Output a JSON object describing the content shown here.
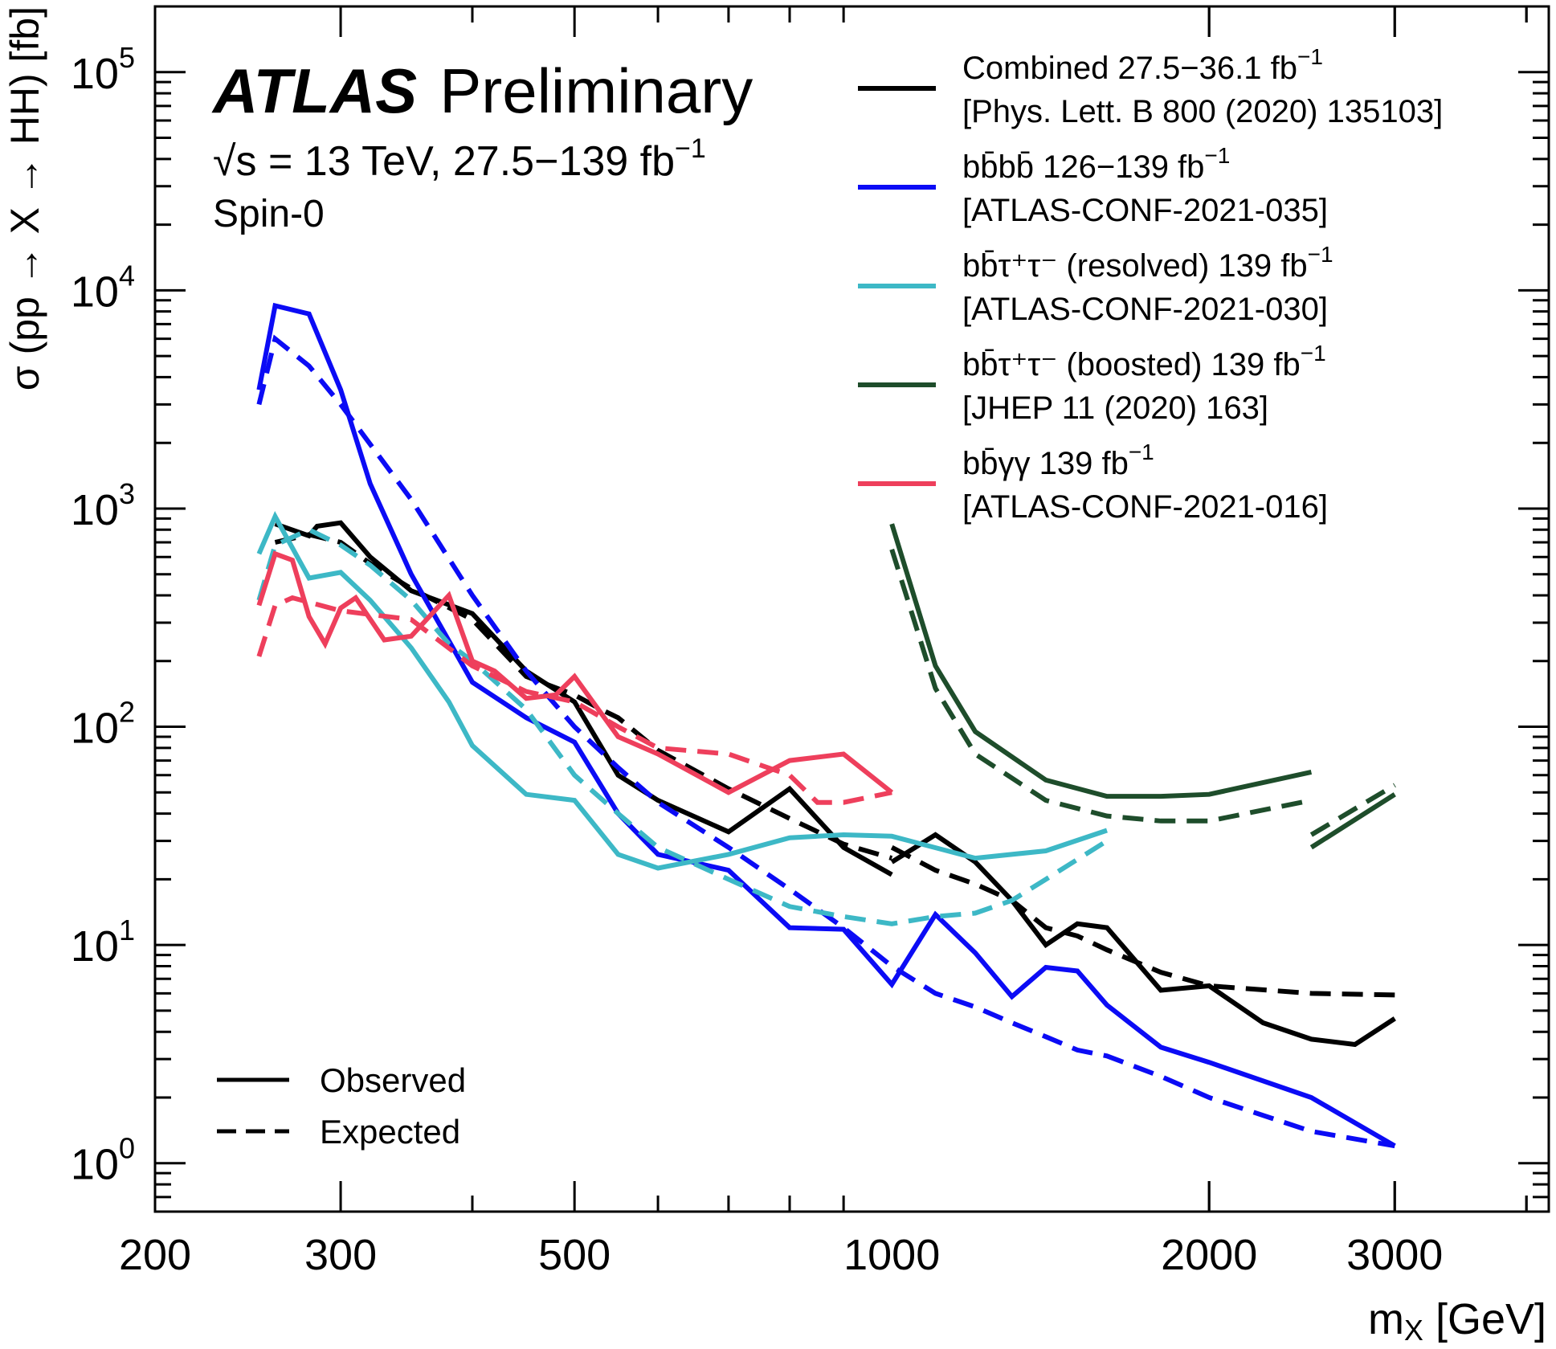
{
  "chart_data": {
    "type": "line",
    "xscale": "log",
    "yscale": "log",
    "xlim": [
      200,
      4200
    ],
    "ylim": [
      0.6,
      200000
    ],
    "xlabel": "m",
    "xlabel_sub": "X",
    "xlabel_unit": " [GeV]",
    "ylabel": "σ (pp → X → HH) [fb]",
    "x_ticks": [
      {
        "value": 200,
        "label": "200"
      },
      {
        "value": 300,
        "label": "300"
      },
      {
        "value": 500,
        "label": "500"
      },
      {
        "value": 1000,
        "label": "1000"
      },
      {
        "value": 2000,
        "label": "2000"
      },
      {
        "value": 3000,
        "label": "3000"
      }
    ],
    "y_ticks": [
      {
        "value": 1,
        "base": "10",
        "exp": "0"
      },
      {
        "value": 10,
        "base": "10",
        "exp": "1"
      },
      {
        "value": 100,
        "base": "10",
        "exp": "2"
      },
      {
        "value": 1000,
        "base": "10",
        "exp": "3"
      },
      {
        "value": 10000,
        "base": "10",
        "exp": "4"
      },
      {
        "value": 100000,
        "base": "10",
        "exp": "5"
      }
    ],
    "annotations": {
      "experiment": "ATLAS",
      "status": "Preliminary",
      "energy": "√s = 13 TeV, 27.5−139 fb",
      "energy_sup": "−1",
      "spin": "Spin-0"
    },
    "style_legend": {
      "observed": "Observed",
      "expected": "Expected"
    },
    "legend": [
      {
        "key": "combined",
        "color": "#000000",
        "line1": "Combined 27.5−36.1 fb",
        "line1_sup": "−1",
        "line2": "[Phys. Lett. B 800 (2020) 135103]"
      },
      {
        "key": "bbbb",
        "color": "#0b0bf5",
        "line1": "bb̄bb̄ 126−139 fb",
        "line1_sup": "−1",
        "line2": "[ATLAS-CONF-2021-035]"
      },
      {
        "key": "bbtautau_resolved",
        "color": "#3db8c6",
        "line1": "bb̄τ⁺τ⁻ (resolved) 139 fb",
        "line1_sup": "−1",
        "line2": "[ATLAS-CONF-2021-030]"
      },
      {
        "key": "bbtautau_boosted",
        "color": "#1e4d2b",
        "line1": "bb̄τ⁺τ⁻ (boosted) 139 fb",
        "line1_sup": "−1",
        "line2": "[JHEP 11 (2020) 163]"
      },
      {
        "key": "bbyy",
        "color": "#ee3f5c",
        "line1": "bb̄γγ 139 fb",
        "line1_sup": "−1",
        "line2": "[ATLAS-CONF-2021-016]"
      }
    ],
    "series": [
      {
        "name": "Combined observed",
        "key": "combined",
        "style": "solid",
        "color": "#000000",
        "points": [
          [
            260,
            850
          ],
          [
            280,
            750
          ],
          [
            285,
            830
          ],
          [
            300,
            860
          ],
          [
            320,
            600
          ],
          [
            350,
            420
          ],
          [
            370,
            380
          ],
          [
            400,
            330
          ],
          [
            450,
            180
          ],
          [
            500,
            130
          ],
          [
            550,
            60
          ],
          [
            600,
            46
          ],
          [
            700,
            33
          ],
          [
            800,
            52
          ],
          [
            900,
            28
          ],
          [
            1000,
            21
          ]
        ]
      },
      {
        "name": "Combined expected",
        "key": "combined",
        "style": "dashed",
        "color": "#000000",
        "points": [
          [
            260,
            700
          ],
          [
            280,
            760
          ],
          [
            300,
            700
          ],
          [
            320,
            560
          ],
          [
            350,
            430
          ],
          [
            400,
            310
          ],
          [
            450,
            170
          ],
          [
            500,
            140
          ],
          [
            530,
            120
          ],
          [
            550,
            110
          ],
          [
            600,
            78
          ],
          [
            700,
            52
          ],
          [
            800,
            38
          ],
          [
            900,
            29
          ],
          [
            1000,
            25
          ]
        ]
      },
      {
        "name": "Combined observed (high mass)",
        "key": "combined",
        "style": "solid",
        "color": "#000000",
        "points": [
          [
            1000,
            24
          ],
          [
            1100,
            32
          ],
          [
            1200,
            24
          ],
          [
            1300,
            16
          ],
          [
            1400,
            10
          ],
          [
            1500,
            12.5
          ],
          [
            1600,
            12
          ],
          [
            1800,
            6.2
          ],
          [
            2000,
            6.5
          ],
          [
            2250,
            4.4
          ],
          [
            2500,
            3.7
          ],
          [
            2750,
            3.5
          ],
          [
            3000,
            4.6
          ]
        ]
      },
      {
        "name": "Combined expected (high mass)",
        "key": "combined",
        "style": "dashed",
        "color": "#000000",
        "points": [
          [
            1000,
            28
          ],
          [
            1100,
            22
          ],
          [
            1200,
            19
          ],
          [
            1300,
            16
          ],
          [
            1400,
            12
          ],
          [
            1500,
            11
          ],
          [
            1600,
            9.5
          ],
          [
            1800,
            7.5
          ],
          [
            2000,
            6.5
          ],
          [
            2500,
            6
          ],
          [
            3000,
            5.9
          ]
        ]
      },
      {
        "name": "bbbb observed",
        "key": "bbbb",
        "style": "solid",
        "color": "#0b0bf5",
        "points": [
          [
            251,
            3500
          ],
          [
            260,
            8500
          ],
          [
            280,
            7800
          ],
          [
            300,
            3500
          ],
          [
            320,
            1300
          ],
          [
            350,
            500
          ],
          [
            400,
            160
          ],
          [
            450,
            110
          ],
          [
            500,
            85
          ],
          [
            550,
            40
          ],
          [
            600,
            26
          ],
          [
            700,
            22
          ],
          [
            800,
            12
          ],
          [
            900,
            11.8
          ],
          [
            1000,
            6.6
          ],
          [
            1100,
            13.8
          ],
          [
            1200,
            9.2
          ],
          [
            1300,
            5.8
          ],
          [
            1400,
            7.9
          ],
          [
            1500,
            7.6
          ],
          [
            1600,
            5.3
          ],
          [
            1800,
            3.4
          ],
          [
            2000,
            2.9
          ],
          [
            2500,
            2
          ],
          [
            3000,
            1.2
          ]
        ]
      },
      {
        "name": "bbbb expected",
        "key": "bbbb",
        "style": "dashed",
        "color": "#0b0bf5",
        "points": [
          [
            251,
            3000
          ],
          [
            260,
            6000
          ],
          [
            280,
            4500
          ],
          [
            300,
            3000
          ],
          [
            350,
            1100
          ],
          [
            400,
            400
          ],
          [
            450,
            180
          ],
          [
            500,
            100
          ],
          [
            550,
            65
          ],
          [
            600,
            45
          ],
          [
            700,
            28
          ],
          [
            800,
            18
          ],
          [
            900,
            12
          ],
          [
            1000,
            8
          ],
          [
            1100,
            6
          ],
          [
            1200,
            5.2
          ],
          [
            1300,
            4.4
          ],
          [
            1400,
            3.8
          ],
          [
            1500,
            3.3
          ],
          [
            1600,
            3.1
          ],
          [
            1800,
            2.5
          ],
          [
            2000,
            2
          ],
          [
            2500,
            1.4
          ],
          [
            3000,
            1.2
          ]
        ]
      },
      {
        "name": "bbtautau resolved observed",
        "key": "bbtautau_resolved",
        "style": "solid",
        "color": "#3db8c6",
        "points": [
          [
            251,
            620
          ],
          [
            260,
            920
          ],
          [
            280,
            480
          ],
          [
            300,
            510
          ],
          [
            320,
            380
          ],
          [
            350,
            230
          ],
          [
            380,
            130
          ],
          [
            400,
            82
          ],
          [
            450,
            49
          ],
          [
            500,
            46
          ],
          [
            550,
            26
          ],
          [
            600,
            22.5
          ],
          [
            700,
            26
          ],
          [
            800,
            31
          ],
          [
            900,
            32
          ],
          [
            1000,
            31.5
          ],
          [
            1200,
            25
          ],
          [
            1400,
            27
          ],
          [
            1600,
            33.5
          ]
        ]
      },
      {
        "name": "bbtautau resolved expected",
        "key": "bbtautau_resolved",
        "style": "dashed",
        "color": "#3db8c6",
        "points": [
          [
            251,
            380
          ],
          [
            260,
            680
          ],
          [
            280,
            800
          ],
          [
            300,
            680
          ],
          [
            320,
            550
          ],
          [
            350,
            380
          ],
          [
            380,
            240
          ],
          [
            400,
            200
          ],
          [
            450,
            120
          ],
          [
            500,
            60
          ],
          [
            550,
            40
          ],
          [
            600,
            28
          ],
          [
            700,
            20
          ],
          [
            800,
            15
          ],
          [
            900,
            13.5
          ],
          [
            1000,
            12.5
          ],
          [
            1100,
            13.5
          ],
          [
            1200,
            14
          ],
          [
            1300,
            16
          ],
          [
            1400,
            20
          ],
          [
            1600,
            30
          ]
        ]
      },
      {
        "name": "bbyy observed",
        "key": "bbyy",
        "style": "solid",
        "color": "#ee3f5c",
        "points": [
          [
            251,
            360
          ],
          [
            260,
            620
          ],
          [
            270,
            580
          ],
          [
            280,
            320
          ],
          [
            290,
            240
          ],
          [
            300,
            350
          ],
          [
            310,
            390
          ],
          [
            330,
            250
          ],
          [
            350,
            260
          ],
          [
            380,
            400
          ],
          [
            400,
            200
          ],
          [
            420,
            180
          ],
          [
            450,
            135
          ],
          [
            480,
            140
          ],
          [
            500,
            170
          ],
          [
            550,
            90
          ],
          [
            600,
            75
          ],
          [
            700,
            50
          ],
          [
            800,
            70
          ],
          [
            900,
            75
          ],
          [
            1000,
            50
          ]
        ]
      },
      {
        "name": "bbyy expected",
        "key": "bbyy",
        "style": "dashed",
        "color": "#ee3f5c",
        "points": [
          [
            251,
            210
          ],
          [
            260,
            360
          ],
          [
            270,
            390
          ],
          [
            300,
            340
          ],
          [
            350,
            310
          ],
          [
            400,
            190
          ],
          [
            450,
            145
          ],
          [
            500,
            130
          ],
          [
            550,
            100
          ],
          [
            600,
            80
          ],
          [
            700,
            75
          ],
          [
            800,
            60
          ],
          [
            850,
            45
          ],
          [
            900,
            45
          ],
          [
            1000,
            50
          ]
        ]
      },
      {
        "name": "bbtautau boosted observed",
        "key": "bbtautau_boosted",
        "style": "solid",
        "color": "#1e4d2b",
        "points": [
          [
            1000,
            850
          ],
          [
            1100,
            190
          ],
          [
            1200,
            95
          ],
          [
            1400,
            57
          ],
          [
            1600,
            48
          ],
          [
            1800,
            48
          ],
          [
            2000,
            49
          ],
          [
            2500,
            62
          ]
        ]
      },
      {
        "name": "bbtautau boosted expected",
        "key": "bbtautau_boosted",
        "style": "dashed",
        "color": "#1e4d2b",
        "points": [
          [
            1000,
            650
          ],
          [
            1100,
            150
          ],
          [
            1200,
            75
          ],
          [
            1400,
            46
          ],
          [
            1600,
            39
          ],
          [
            1800,
            37
          ],
          [
            2000,
            37
          ],
          [
            2500,
            46
          ]
        ]
      },
      {
        "name": "bbtautau boosted observed (high mass)",
        "key": "bbtautau_boosted",
        "style": "solid",
        "color": "#1e4d2b",
        "points": [
          [
            2500,
            28
          ],
          [
            3000,
            49
          ]
        ]
      },
      {
        "name": "bbtautau boosted expected (high mass)",
        "key": "bbtautau_boosted",
        "style": "dashed",
        "color": "#1e4d2b",
        "points": [
          [
            2500,
            32
          ],
          [
            3000,
            54
          ]
        ]
      }
    ]
  }
}
